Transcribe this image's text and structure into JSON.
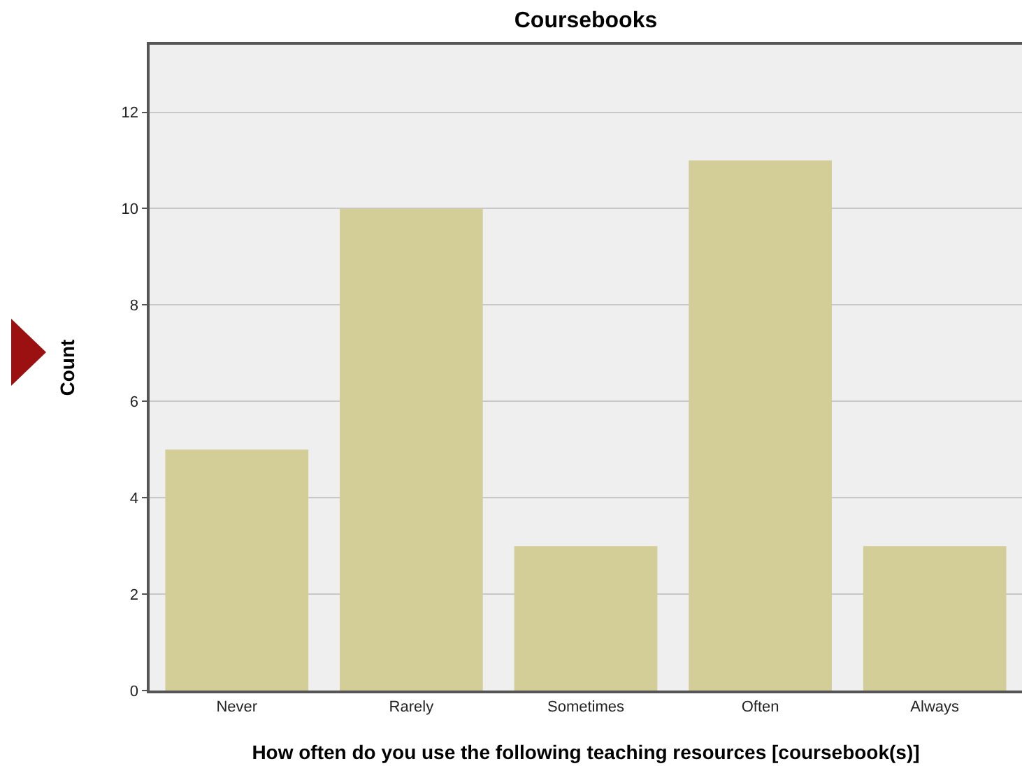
{
  "chart_data": {
    "type": "bar",
    "title": "Coursebooks",
    "xlabel": "How often do you use the following teaching resources [coursebook(s)]",
    "ylabel": "Count",
    "categories": [
      "Never",
      "Rarely",
      "Sometimes",
      "Often",
      "Always"
    ],
    "values": [
      5,
      10,
      3,
      11,
      3
    ],
    "color": "#d3ce97",
    "ylim": [
      0,
      13.4
    ],
    "yticks": [
      0,
      2,
      4,
      6,
      8,
      10,
      12
    ],
    "grid": "y"
  }
}
